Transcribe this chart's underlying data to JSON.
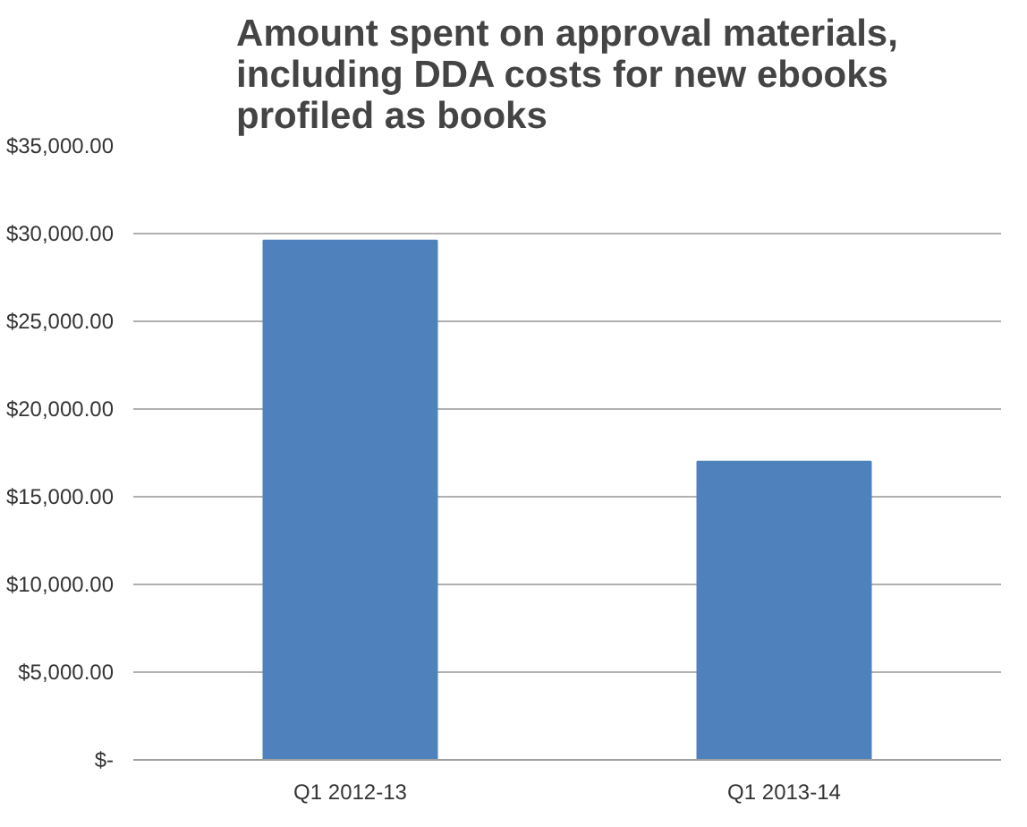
{
  "chart_data": {
    "type": "bar",
    "title": "Amount spent on approval materials,\nincluding DDA costs for new ebooks\nprofiled as books",
    "categories": [
      "Q1 2012-13",
      "Q1 2013-14"
    ],
    "values": [
      29600,
      17000
    ],
    "color": "#4f81bd",
    "ylim": [
      0,
      35000
    ],
    "yticks": [
      {
        "value": 0,
        "label": "$-"
      },
      {
        "value": 5000,
        "label": "$5,000.00"
      },
      {
        "value": 10000,
        "label": "$10,000.00"
      },
      {
        "value": 15000,
        "label": "$15,000.00"
      },
      {
        "value": 20000,
        "label": "$20,000.00"
      },
      {
        "value": 25000,
        "label": "$25,000.00"
      },
      {
        "value": 30000,
        "label": "$30,000.00"
      },
      {
        "value": 35000,
        "label": "$35,000.00"
      }
    ],
    "grid": "y"
  }
}
